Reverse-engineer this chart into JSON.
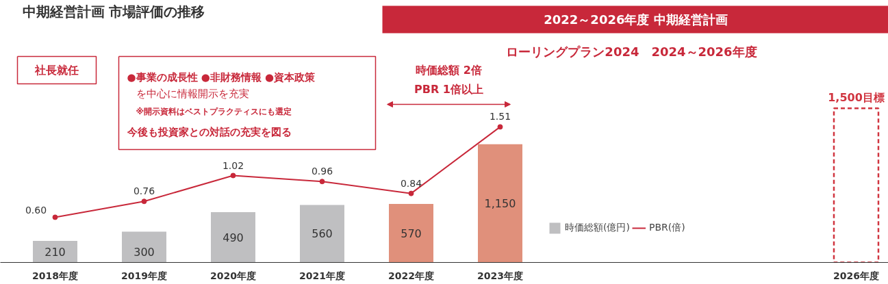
{
  "chart_data": {
    "type": "bar",
    "title": "中期経営計画 市場評価の推移",
    "categories": [
      "2018年度",
      "2019年度",
      "2020年度",
      "2021年度",
      "2022年度",
      "2023年度",
      null,
      null,
      null,
      "2026年度"
    ],
    "legend": "bottom right",
    "grid": false,
    "series": [
      {
        "name": "時価総額(億円)",
        "colors": [
          "#bfbfc1",
          "#bfbfc1",
          "#bfbfc1",
          "#bfbfc1",
          "#e0907b",
          "#e0907b",
          null,
          null,
          null,
          null
        ],
        "values": [
          210,
          300,
          490,
          560,
          570,
          1150,
          null,
          null,
          null,
          null
        ],
        "value_labels": [
          "210",
          "300",
          "490",
          "560",
          "570",
          "1,150",
          null,
          null,
          null,
          null
        ]
      },
      {
        "line_style": "dashed",
        "color": "#d0343f",
        "values": [
          null,
          null,
          null,
          null,
          null,
          null,
          null,
          null,
          null,
          1500
        ],
        "value_labels": [
          null,
          null,
          null,
          null,
          null,
          null,
          null,
          null,
          null,
          "1,500目標"
        ]
      },
      {
        "name": "PBR(倍)",
        "type": "line",
        "axis": "y2",
        "color": "#c8283a",
        "marker": "circle",
        "values": [
          0.6,
          0.76,
          1.02,
          0.96,
          0.84,
          1.51,
          null,
          null,
          null,
          null
        ],
        "value_labels": [
          "0.60",
          "0.76",
          "1.02",
          "0.96",
          "0.84",
          "1.51",
          null,
          null,
          null,
          null
        ]
      }
    ],
    "annotations": [
      "2022～2026年度 中期経営計画",
      "ローリングプラン2024　2024～2026年度",
      "社長就任",
      "●事業の成長性 ●非財務情報 ●資本政策",
      "を中心に情報開示を充実",
      "※開示資料はベストプラクティスにも選定",
      "今後も投資家との対話の充実を図る",
      "時価総額 2倍",
      "PBR 1倍以上"
    ]
  }
}
